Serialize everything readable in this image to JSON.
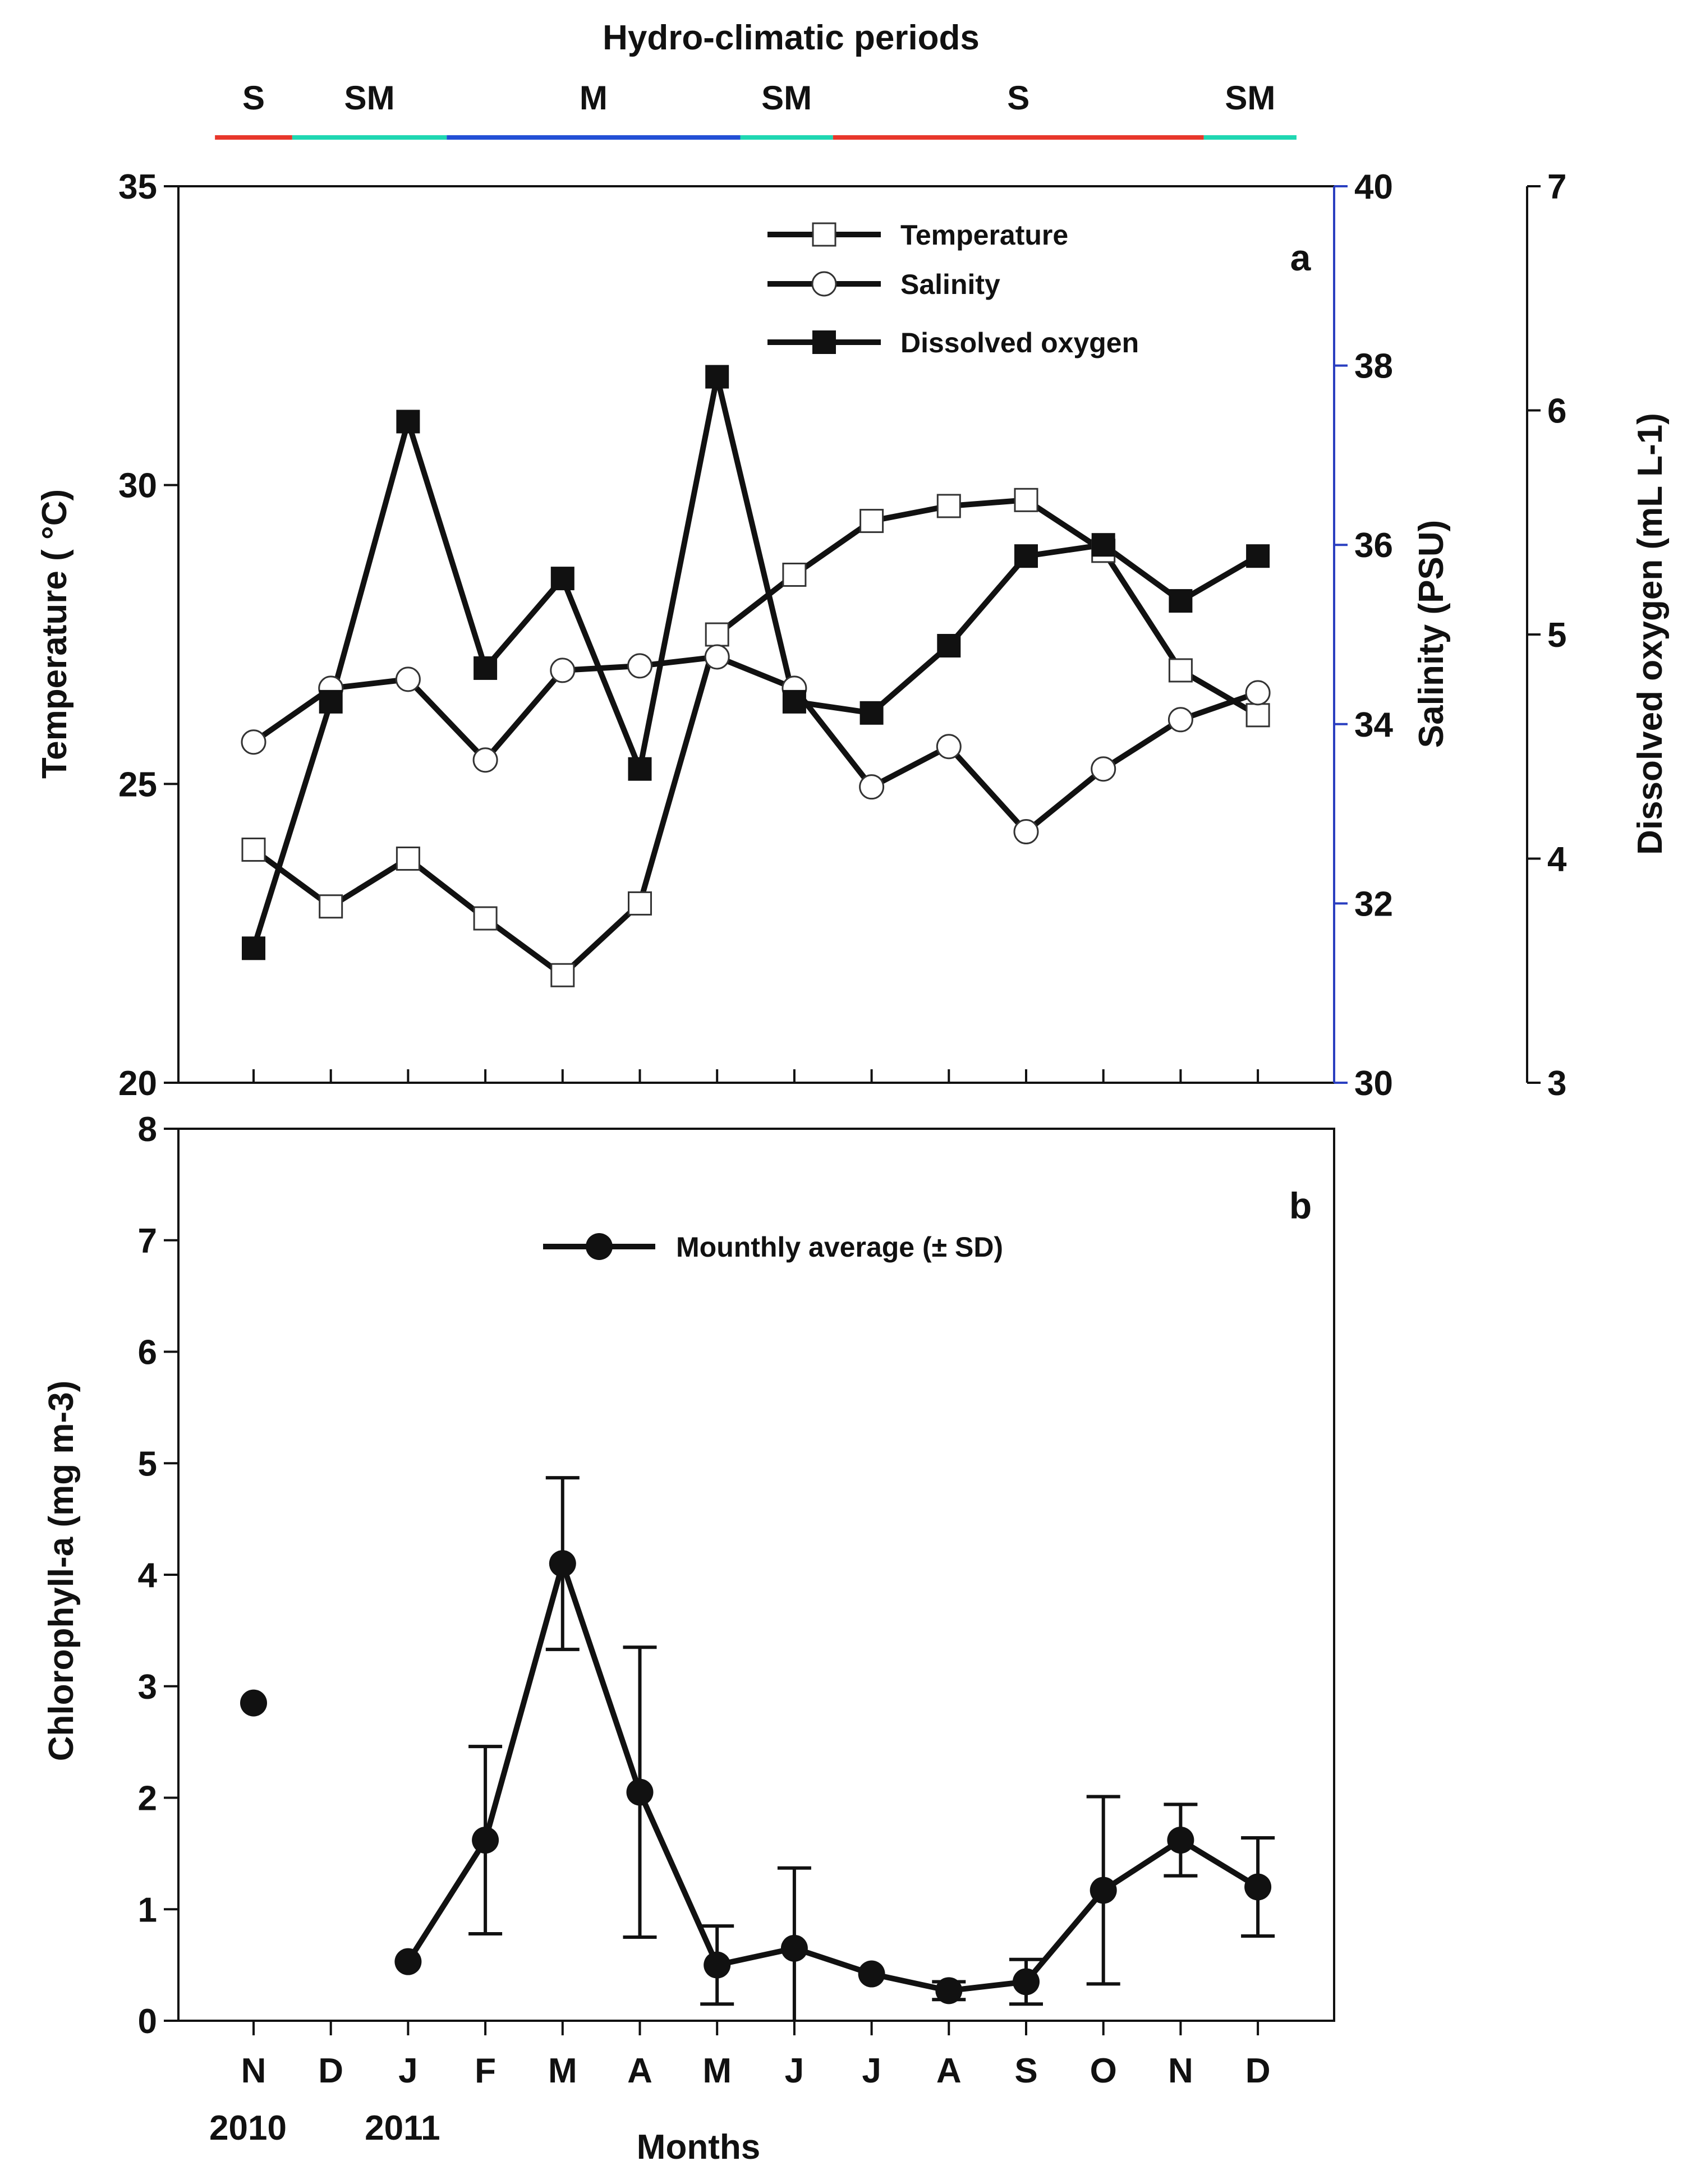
{
  "header": {
    "title": "Hydro-climatic periods",
    "periods": [
      {
        "label": "S",
        "start": -0.5,
        "end": 0.5,
        "color": "#e8372b"
      },
      {
        "label": "SM",
        "start": 0.5,
        "end": 2.5,
        "color": "#1fd7b2",
        "label_at": 1.5
      },
      {
        "label": "M",
        "start": 2.5,
        "end": 6.3,
        "color": "#2350d6"
      },
      {
        "label": "SM",
        "start": 6.3,
        "end": 7.5,
        "color": "#1fd7b2"
      },
      {
        "label": "S",
        "start": 7.5,
        "end": 12.3,
        "color": "#e8372b"
      },
      {
        "label": "SM",
        "start": 12.3,
        "end": 13.5,
        "color": "#1fd7b2"
      }
    ]
  },
  "chart_data": [
    {
      "id": "a",
      "type": "line",
      "panel_label": "a",
      "categories": [
        "N",
        "D",
        "J",
        "F",
        "M",
        "A",
        "M",
        "J",
        "J",
        "A",
        "S",
        "O",
        "N",
        "D"
      ],
      "ylabel_left": "Temperature ( °C)",
      "ylabel_right1": "Salinity (PSU)",
      "ylabel_right2": "Dissolved oxygen (mL L-1)",
      "ylim_left": [
        20,
        35
      ],
      "ylim_right1": [
        30,
        40
      ],
      "ylim_right2": [
        3,
        7
      ],
      "yticks_left": [
        20,
        25,
        30,
        35
      ],
      "yticks_right1": [
        30,
        32,
        34,
        36,
        38,
        40
      ],
      "yticks_right2": [
        3,
        4,
        5,
        6,
        7
      ],
      "right1_axis_color": "#2a3fc0",
      "series": [
        {
          "name": "Temperature",
          "axis": "left",
          "marker": "open-square",
          "values": [
            23.9,
            22.95,
            23.75,
            22.75,
            21.8,
            23.0,
            27.5,
            28.5,
            29.4,
            29.65,
            29.75,
            28.9,
            26.9,
            26.15
          ]
        },
        {
          "name": "Salinity",
          "axis": "right1",
          "marker": "open-circle",
          "values": [
            33.8,
            34.4,
            34.5,
            33.6,
            34.6,
            34.65,
            34.75,
            34.4,
            33.3,
            33.75,
            32.8,
            33.5,
            34.05,
            34.35
          ]
        },
        {
          "name": "Dissolved oxygen",
          "axis": "right2",
          "marker": "filled-square",
          "values": [
            3.6,
            4.7,
            5.95,
            4.85,
            5.25,
            4.4,
            6.15,
            4.7,
            4.65,
            4.95,
            5.35,
            5.4,
            5.15,
            5.35
          ]
        }
      ],
      "legend": [
        {
          "label": "Temperature",
          "marker": "open-square"
        },
        {
          "label": "Salinity",
          "marker": "open-circle"
        },
        {
          "label": "Dissolved oxygen",
          "marker": "filled-square"
        }
      ]
    },
    {
      "id": "b",
      "type": "line",
      "panel_label": "b",
      "categories": [
        "N",
        "D",
        "J",
        "F",
        "M",
        "A",
        "M",
        "J",
        "J",
        "A",
        "S",
        "O",
        "N",
        "D"
      ],
      "year_labels": [
        {
          "label": "2010",
          "at": 0
        },
        {
          "label": "2011",
          "at": 2
        }
      ],
      "xlabel": "Months",
      "ylabel": "Chlorophyll-a (mg m-3)",
      "ylim": [
        0,
        8
      ],
      "yticks": [
        0,
        1,
        2,
        3,
        4,
        5,
        6,
        7,
        8
      ],
      "series": [
        {
          "name": "Mounthly average (± SD)",
          "marker": "filled-circle",
          "values": [
            2.85,
            null,
            0.53,
            1.62,
            4.1,
            2.05,
            0.5,
            0.65,
            0.42,
            0.27,
            0.35,
            1.17,
            1.62,
            1.2
          ],
          "error": [
            null,
            null,
            null,
            0.84,
            0.77,
            1.3,
            0.35,
            0.72,
            null,
            0.08,
            0.2,
            0.84,
            0.32,
            0.44
          ],
          "connected_from": 2
        }
      ],
      "legend": [
        {
          "label": "Mounthly average (± SD)",
          "marker": "filled-circle"
        }
      ]
    }
  ]
}
